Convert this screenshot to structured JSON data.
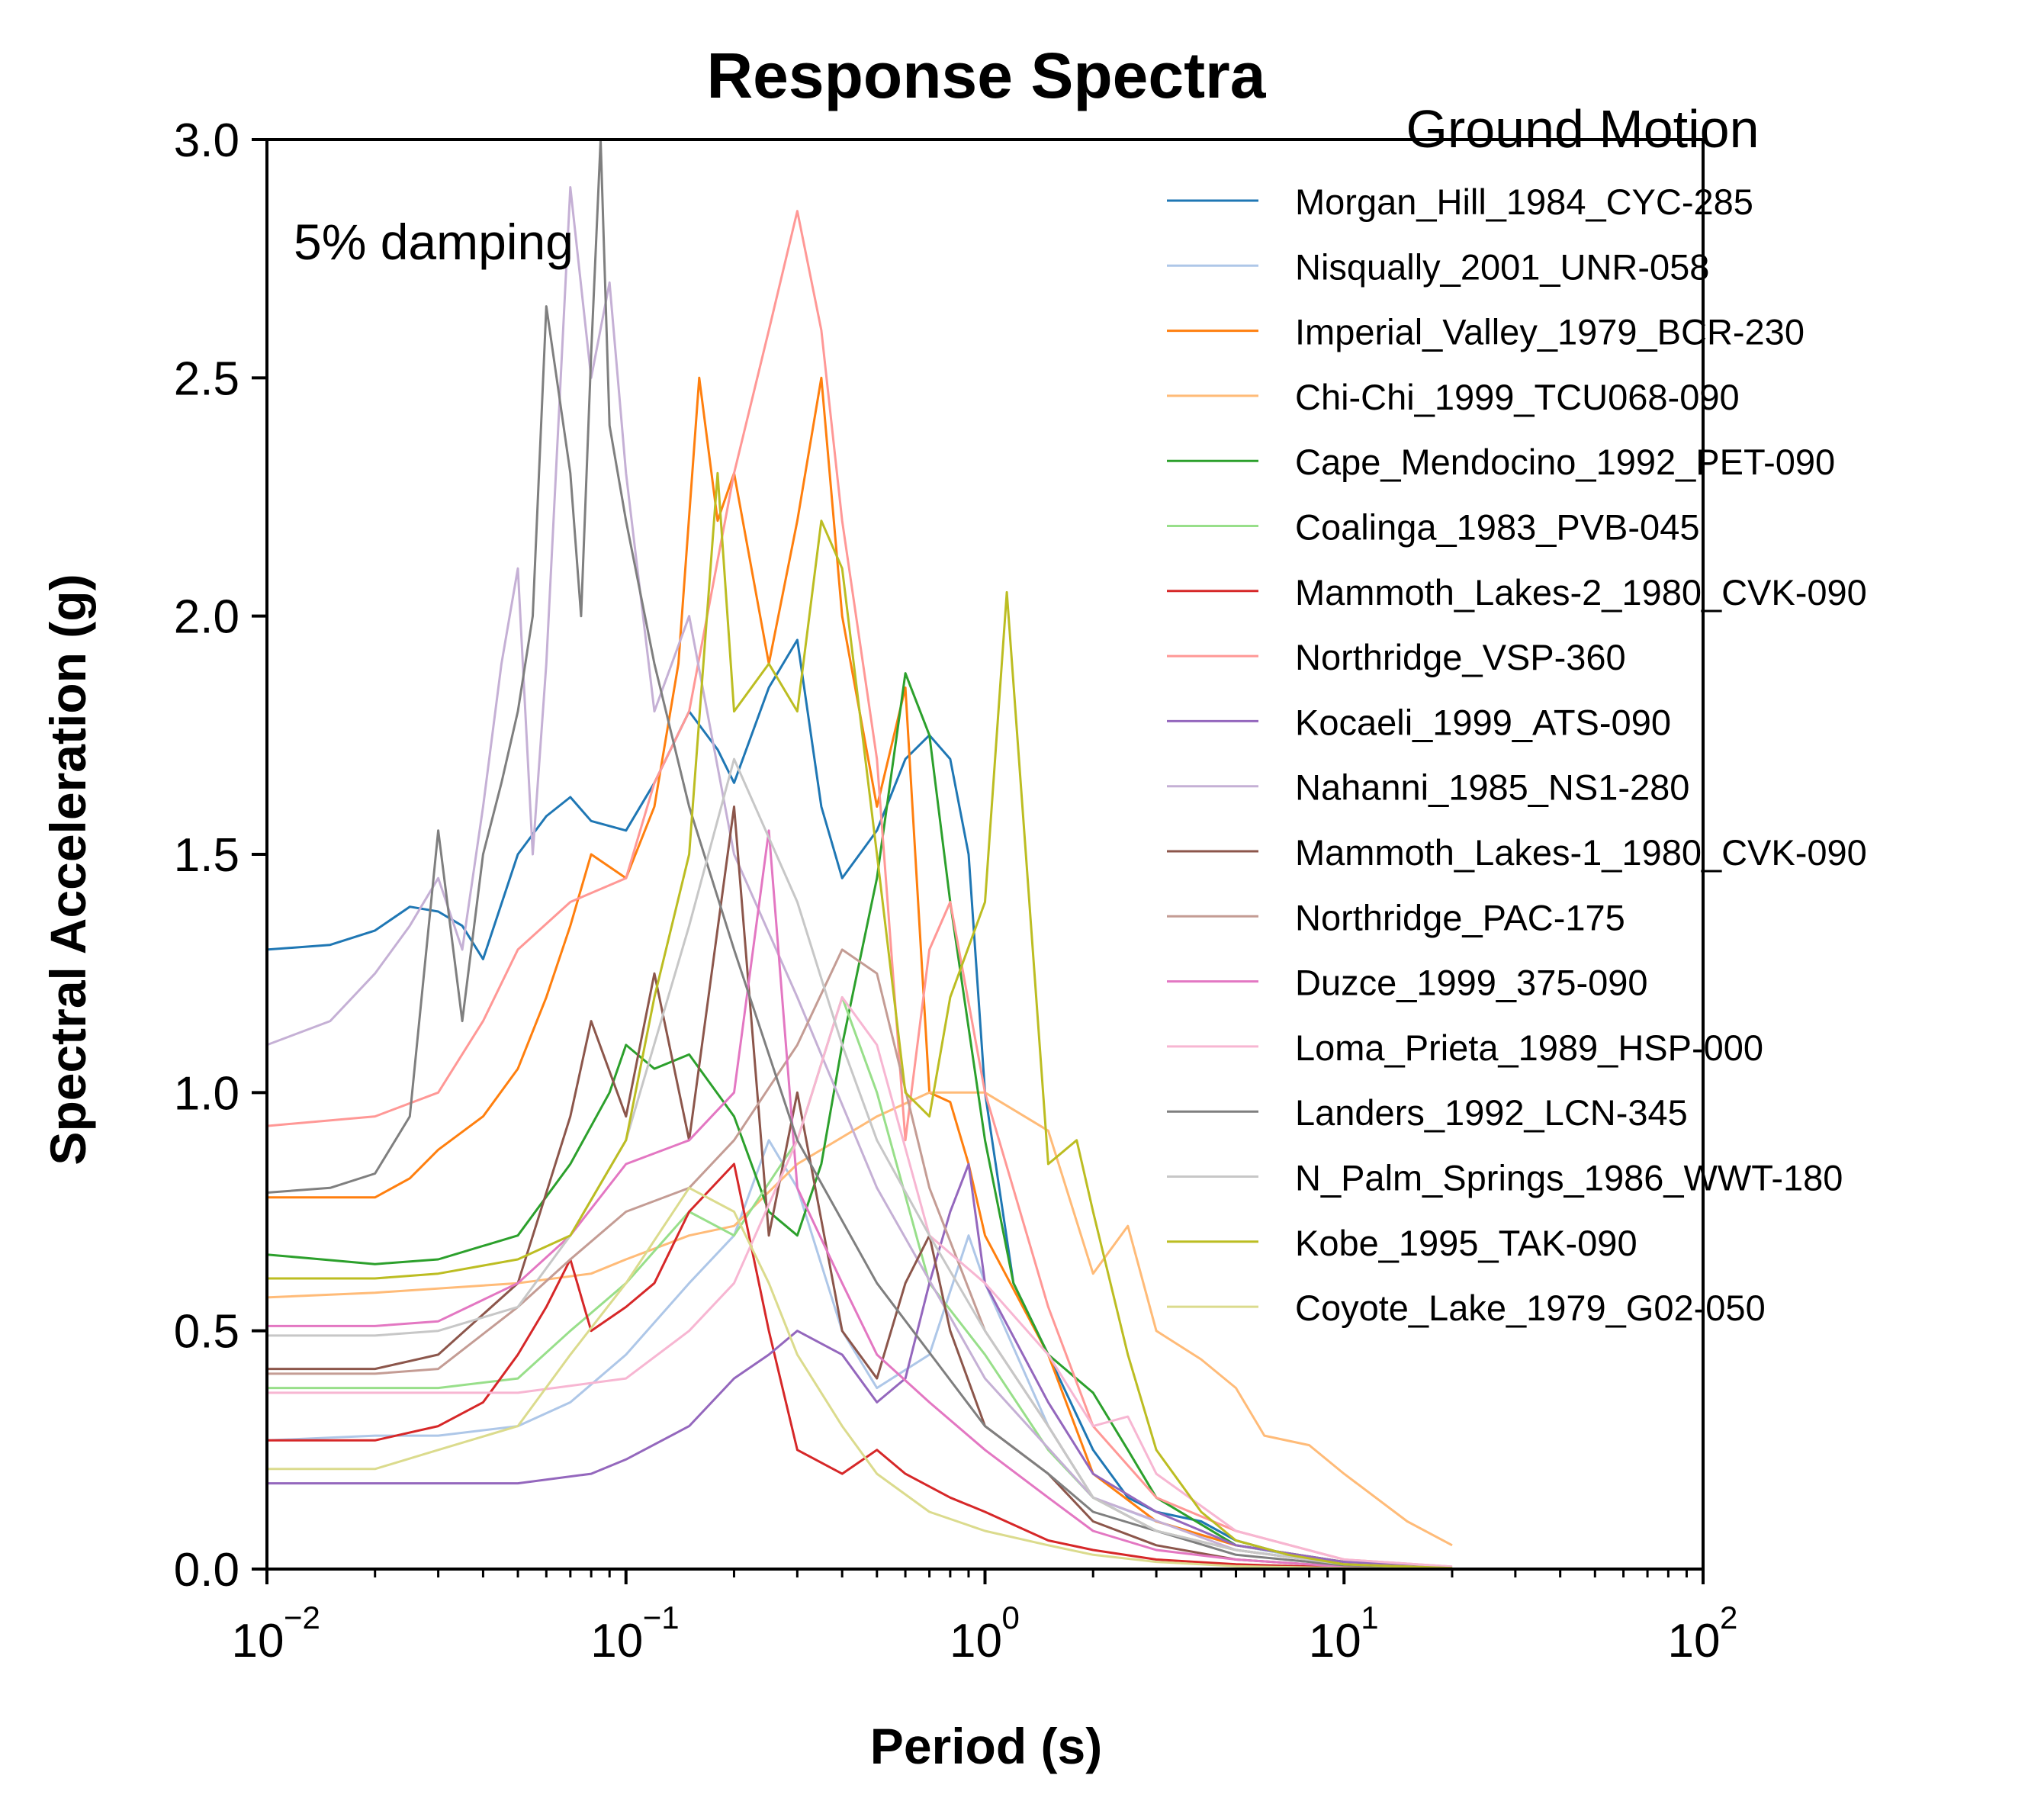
{
  "chart_data": {
    "type": "line",
    "title": "Response Spectra",
    "xlabel": "Period (s)",
    "ylabel": "Spectral Acceleration (g)",
    "xscale": "log",
    "xlim": [
      0.01,
      100
    ],
    "ylim": [
      0,
      3.0
    ],
    "xticks": [
      {
        "base": "10",
        "exp": "−2",
        "value": 0.01
      },
      {
        "base": "10",
        "exp": "−1",
        "value": 0.1
      },
      {
        "base": "10",
        "exp": "0",
        "value": 1
      },
      {
        "base": "10",
        "exp": "1",
        "value": 10
      },
      {
        "base": "10",
        "exp": "2",
        "value": 100
      }
    ],
    "yticks": [
      {
        "label": "0.0",
        "value": 0.0
      },
      {
        "label": "0.5",
        "value": 0.5
      },
      {
        "label": "1.0",
        "value": 1.0
      },
      {
        "label": "1.5",
        "value": 1.5
      },
      {
        "label": "2.0",
        "value": 2.0
      },
      {
        "label": "2.5",
        "value": 2.5
      },
      {
        "label": "3.0",
        "value": 3.0
      }
    ],
    "grid": false,
    "annotation": "5% damping",
    "legend": {
      "title": "Ground Motion",
      "placement": "top-right"
    },
    "series": [
      {
        "name": "Morgan_Hill_1984_CYC-285",
        "color": "#1f77b4",
        "x": [
          0.01,
          0.015,
          0.02,
          0.025,
          0.03,
          0.035,
          0.04,
          0.05,
          0.06,
          0.07,
          0.08,
          0.1,
          0.12,
          0.15,
          0.18,
          0.2,
          0.25,
          0.3,
          0.35,
          0.4,
          0.5,
          0.6,
          0.7,
          0.8,
          0.9,
          1.0,
          1.2,
          1.5,
          2.0,
          2.5,
          3,
          4,
          5,
          7,
          10,
          15,
          20
        ],
        "y": [
          1.3,
          1.31,
          1.34,
          1.39,
          1.38,
          1.35,
          1.28,
          1.5,
          1.58,
          1.62,
          1.57,
          1.55,
          1.65,
          1.8,
          1.72,
          1.65,
          1.85,
          1.95,
          1.6,
          1.45,
          1.55,
          1.7,
          1.75,
          1.7,
          1.5,
          1.0,
          0.6,
          0.45,
          0.25,
          0.15,
          0.12,
          0.1,
          0.06,
          0.03,
          0.015,
          0.005,
          0.002
        ]
      },
      {
        "name": "Nisqually_2001_UNR-058",
        "color": "#aec7e8",
        "x": [
          0.01,
          0.02,
          0.03,
          0.05,
          0.07,
          0.1,
          0.15,
          0.2,
          0.25,
          0.3,
          0.4,
          0.5,
          0.7,
          0.9,
          1.0,
          1.5,
          2,
          3,
          5,
          10,
          20
        ],
        "y": [
          0.27,
          0.28,
          0.28,
          0.3,
          0.35,
          0.45,
          0.6,
          0.7,
          0.9,
          0.8,
          0.5,
          0.38,
          0.45,
          0.7,
          0.6,
          0.3,
          0.15,
          0.1,
          0.05,
          0.01,
          0.002
        ]
      },
      {
        "name": "Imperial_Valley_1979_BCR-230",
        "color": "#ff7f0e",
        "x": [
          0.01,
          0.02,
          0.025,
          0.03,
          0.04,
          0.05,
          0.06,
          0.07,
          0.08,
          0.1,
          0.12,
          0.14,
          0.16,
          0.18,
          0.2,
          0.25,
          0.3,
          0.35,
          0.4,
          0.5,
          0.6,
          0.7,
          0.8,
          0.9,
          1.0,
          1.5,
          2,
          3,
          5,
          10,
          20
        ],
        "y": [
          0.78,
          0.78,
          0.82,
          0.88,
          0.95,
          1.05,
          1.2,
          1.35,
          1.5,
          1.45,
          1.6,
          1.9,
          2.5,
          2.2,
          2.3,
          1.9,
          2.2,
          2.5,
          2.0,
          1.6,
          1.85,
          1.0,
          0.98,
          0.85,
          0.7,
          0.45,
          0.2,
          0.1,
          0.05,
          0.015,
          0.003
        ]
      },
      {
        "name": "Chi-Chi_1999_TCU068-090",
        "color": "#ffbb78",
        "x": [
          0.01,
          0.02,
          0.05,
          0.08,
          0.1,
          0.15,
          0.2,
          0.3,
          0.5,
          0.7,
          1.0,
          1.5,
          2.0,
          2.5,
          3.0,
          4.0,
          5,
          6,
          8,
          10,
          15,
          20
        ],
        "y": [
          0.57,
          0.58,
          0.6,
          0.62,
          0.65,
          0.7,
          0.72,
          0.85,
          0.95,
          1.0,
          1.0,
          0.92,
          0.62,
          0.72,
          0.5,
          0.44,
          0.38,
          0.28,
          0.26,
          0.2,
          0.1,
          0.05
        ]
      },
      {
        "name": "Cape_Mendocino_1992_PET-090",
        "color": "#2ca02c",
        "x": [
          0.01,
          0.02,
          0.03,
          0.05,
          0.07,
          0.09,
          0.1,
          0.12,
          0.15,
          0.2,
          0.25,
          0.3,
          0.35,
          0.4,
          0.5,
          0.6,
          0.7,
          0.8,
          1.0,
          1.2,
          1.5,
          2.0,
          2.5,
          3,
          5,
          10,
          20
        ],
        "y": [
          0.66,
          0.64,
          0.65,
          0.7,
          0.85,
          1.0,
          1.1,
          1.05,
          1.08,
          0.95,
          0.75,
          0.7,
          0.85,
          1.1,
          1.45,
          1.88,
          1.75,
          1.4,
          0.9,
          0.6,
          0.45,
          0.37,
          0.25,
          0.15,
          0.05,
          0.015,
          0.003
        ]
      },
      {
        "name": "Coalinga_1983_PVB-045",
        "color": "#98df8a",
        "x": [
          0.01,
          0.02,
          0.03,
          0.05,
          0.07,
          0.1,
          0.15,
          0.2,
          0.3,
          0.4,
          0.5,
          0.7,
          1.0,
          1.5,
          2,
          3,
          5,
          10,
          20
        ],
        "y": [
          0.38,
          0.38,
          0.38,
          0.4,
          0.5,
          0.6,
          0.75,
          0.7,
          0.9,
          1.2,
          1.0,
          0.6,
          0.45,
          0.25,
          0.15,
          0.08,
          0.04,
          0.01,
          0.002
        ]
      },
      {
        "name": "Mammoth_Lakes-2_1980_CVK-090",
        "color": "#d62728",
        "x": [
          0.01,
          0.02,
          0.03,
          0.04,
          0.05,
          0.06,
          0.07,
          0.08,
          0.1,
          0.12,
          0.15,
          0.2,
          0.25,
          0.3,
          0.4,
          0.5,
          0.6,
          0.8,
          1.0,
          1.5,
          2,
          3,
          5,
          10,
          20
        ],
        "y": [
          0.27,
          0.27,
          0.3,
          0.35,
          0.45,
          0.55,
          0.65,
          0.5,
          0.55,
          0.6,
          0.75,
          0.85,
          0.5,
          0.25,
          0.2,
          0.25,
          0.2,
          0.15,
          0.12,
          0.06,
          0.04,
          0.02,
          0.01,
          0.003,
          0.001
        ]
      },
      {
        "name": "Northridge_VSP-360",
        "color": "#ff9896",
        "x": [
          0.01,
          0.02,
          0.03,
          0.04,
          0.05,
          0.07,
          0.1,
          0.12,
          0.15,
          0.2,
          0.25,
          0.3,
          0.35,
          0.4,
          0.5,
          0.6,
          0.7,
          0.8,
          1.0,
          1.5,
          2,
          3,
          5,
          10,
          20
        ],
        "y": [
          0.93,
          0.95,
          1.0,
          1.15,
          1.3,
          1.4,
          1.45,
          1.65,
          1.8,
          2.3,
          2.6,
          2.85,
          2.6,
          2.2,
          1.7,
          0.9,
          1.3,
          1.4,
          1.0,
          0.55,
          0.3,
          0.15,
          0.08,
          0.02,
          0.005
        ]
      },
      {
        "name": "Kocaeli_1999_ATS-090",
        "color": "#9467bd",
        "x": [
          0.01,
          0.02,
          0.05,
          0.08,
          0.1,
          0.15,
          0.2,
          0.25,
          0.3,
          0.4,
          0.5,
          0.6,
          0.7,
          0.8,
          0.9,
          1.0,
          1.5,
          2,
          3,
          5,
          10,
          20
        ],
        "y": [
          0.18,
          0.18,
          0.18,
          0.2,
          0.23,
          0.3,
          0.4,
          0.45,
          0.5,
          0.45,
          0.35,
          0.4,
          0.6,
          0.75,
          0.85,
          0.6,
          0.35,
          0.2,
          0.12,
          0.05,
          0.015,
          0.003
        ]
      },
      {
        "name": "Nahanni_1985_NS1-280",
        "color": "#c5b0d5",
        "x": [
          0.01,
          0.015,
          0.02,
          0.025,
          0.03,
          0.035,
          0.04,
          0.045,
          0.05,
          0.055,
          0.06,
          0.07,
          0.08,
          0.09,
          0.1,
          0.12,
          0.15,
          0.2,
          0.3,
          0.5,
          1.0,
          2,
          5,
          10,
          20
        ],
        "y": [
          1.1,
          1.15,
          1.25,
          1.35,
          1.45,
          1.3,
          1.6,
          1.9,
          2.1,
          1.5,
          1.9,
          2.9,
          2.5,
          2.7,
          2.3,
          1.8,
          2.0,
          1.5,
          1.2,
          0.8,
          0.4,
          0.15,
          0.04,
          0.01,
          0.002
        ]
      },
      {
        "name": "Mammoth_Lakes-1_1980_CVK-090",
        "color": "#8c564b",
        "x": [
          0.01,
          0.02,
          0.03,
          0.05,
          0.07,
          0.08,
          0.1,
          0.12,
          0.15,
          0.2,
          0.25,
          0.3,
          0.4,
          0.5,
          0.6,
          0.7,
          0.8,
          1.0,
          1.5,
          2,
          3,
          5,
          10,
          20
        ],
        "y": [
          0.42,
          0.42,
          0.45,
          0.6,
          0.95,
          1.15,
          0.95,
          1.25,
          0.9,
          1.6,
          0.7,
          1.0,
          0.5,
          0.4,
          0.6,
          0.7,
          0.5,
          0.3,
          0.2,
          0.1,
          0.05,
          0.02,
          0.005,
          0.001
        ]
      },
      {
        "name": "Northridge_PAC-175",
        "color": "#c49c94",
        "x": [
          0.01,
          0.02,
          0.03,
          0.05,
          0.07,
          0.1,
          0.15,
          0.2,
          0.3,
          0.4,
          0.5,
          0.7,
          1.0,
          1.5,
          2,
          3,
          5,
          10,
          20
        ],
        "y": [
          0.41,
          0.41,
          0.42,
          0.55,
          0.65,
          0.75,
          0.8,
          0.9,
          1.1,
          1.3,
          1.25,
          0.8,
          0.5,
          0.3,
          0.15,
          0.08,
          0.04,
          0.01,
          0.002
        ]
      },
      {
        "name": "Duzce_1999_375-090",
        "color": "#e377c2",
        "x": [
          0.01,
          0.02,
          0.03,
          0.05,
          0.07,
          0.1,
          0.15,
          0.2,
          0.25,
          0.3,
          0.4,
          0.5,
          0.7,
          1.0,
          1.5,
          2,
          3,
          5,
          10,
          20
        ],
        "y": [
          0.51,
          0.51,
          0.52,
          0.6,
          0.7,
          0.85,
          0.9,
          1.0,
          1.55,
          0.8,
          0.6,
          0.45,
          0.35,
          0.25,
          0.15,
          0.08,
          0.04,
          0.02,
          0.005,
          0.001
        ]
      },
      {
        "name": "Loma_Prieta_1989_HSP-000",
        "color": "#f7b6d2",
        "x": [
          0.01,
          0.02,
          0.05,
          0.1,
          0.15,
          0.2,
          0.3,
          0.4,
          0.5,
          0.7,
          1.0,
          1.5,
          2.0,
          2.5,
          3,
          5,
          10,
          20
        ],
        "y": [
          0.37,
          0.37,
          0.37,
          0.4,
          0.5,
          0.6,
          0.9,
          1.2,
          1.1,
          0.7,
          0.6,
          0.45,
          0.3,
          0.32,
          0.2,
          0.08,
          0.02,
          0.005
        ]
      },
      {
        "name": "Landers_1992_LCN-345",
        "color": "#7f7f7f",
        "x": [
          0.01,
          0.015,
          0.02,
          0.025,
          0.03,
          0.035,
          0.04,
          0.045,
          0.05,
          0.055,
          0.06,
          0.07,
          0.075,
          0.08,
          0.085,
          0.09,
          0.1,
          0.12,
          0.15,
          0.2,
          0.3,
          0.5,
          1.0,
          1.5,
          2,
          3,
          5,
          10,
          20
        ],
        "y": [
          0.79,
          0.8,
          0.83,
          0.95,
          1.55,
          1.15,
          1.5,
          1.65,
          1.8,
          2.0,
          2.65,
          2.3,
          2.0,
          2.55,
          3.0,
          2.4,
          2.2,
          1.9,
          1.6,
          1.3,
          0.9,
          0.6,
          0.3,
          0.2,
          0.12,
          0.08,
          0.03,
          0.008,
          0.002
        ]
      },
      {
        "name": "N_Palm_Springs_1986_WWT-180",
        "color": "#c7c7c7",
        "x": [
          0.01,
          0.02,
          0.03,
          0.05,
          0.07,
          0.1,
          0.15,
          0.2,
          0.3,
          0.4,
          0.5,
          0.7,
          1.0,
          1.5,
          2,
          3,
          5,
          10,
          20
        ],
        "y": [
          0.49,
          0.49,
          0.5,
          0.55,
          0.7,
          0.9,
          1.35,
          1.7,
          1.4,
          1.1,
          0.9,
          0.7,
          0.5,
          0.3,
          0.15,
          0.08,
          0.04,
          0.01,
          0.002
        ]
      },
      {
        "name": "Kobe_1995_TAK-090",
        "color": "#bcbd22",
        "x": [
          0.01,
          0.02,
          0.03,
          0.05,
          0.07,
          0.1,
          0.12,
          0.15,
          0.18,
          0.2,
          0.25,
          0.3,
          0.35,
          0.4,
          0.5,
          0.6,
          0.7,
          0.8,
          1.0,
          1.15,
          1.3,
          1.5,
          1.8,
          2.0,
          2.5,
          3.0,
          4,
          5,
          7,
          10,
          20
        ],
        "y": [
          0.61,
          0.61,
          0.62,
          0.65,
          0.7,
          0.9,
          1.2,
          1.5,
          2.3,
          1.8,
          1.9,
          1.8,
          2.2,
          2.1,
          1.5,
          1.0,
          0.95,
          1.2,
          1.4,
          2.05,
          1.5,
          0.85,
          0.9,
          0.75,
          0.45,
          0.25,
          0.12,
          0.06,
          0.03,
          0.01,
          0.002
        ]
      },
      {
        "name": "Coyote_Lake_1979_G02-050",
        "color": "#dbdb8d",
        "x": [
          0.01,
          0.02,
          0.03,
          0.05,
          0.07,
          0.1,
          0.15,
          0.2,
          0.25,
          0.3,
          0.4,
          0.5,
          0.7,
          1.0,
          1.5,
          2,
          3,
          5,
          10,
          20
        ],
        "y": [
          0.21,
          0.21,
          0.25,
          0.3,
          0.45,
          0.6,
          0.8,
          0.75,
          0.6,
          0.45,
          0.3,
          0.2,
          0.12,
          0.08,
          0.05,
          0.03,
          0.015,
          0.006,
          0.002,
          0.001
        ]
      }
    ]
  }
}
